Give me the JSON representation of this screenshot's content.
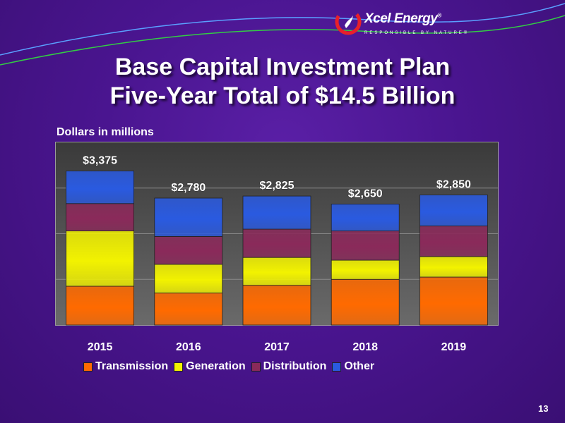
{
  "brand": {
    "name": "Xcel Energy",
    "registered": "®",
    "tagline": "RESPONSIBLE BY NATURE®"
  },
  "slide": {
    "title_line1": "Base Capital Investment Plan",
    "title_line2": "Five-Year Total of $14.5 Billion",
    "page_number": "13"
  },
  "colors": {
    "background": "#4a1590",
    "transmission": "#ff6a00",
    "generation": "#f2f200",
    "distribution": "#8a2a5a",
    "other": "#2a5ae0"
  },
  "chart_data": {
    "type": "bar",
    "stacked": true,
    "ylabel": "Dollars in millions",
    "categories": [
      "2015",
      "2016",
      "2017",
      "2018",
      "2019"
    ],
    "totals": [
      3375,
      2780,
      2825,
      2650,
      2850
    ],
    "total_labels": [
      "$3,375",
      "$2,780",
      "$2,825",
      "$2,650",
      "$2,850"
    ],
    "series": [
      {
        "name": "Transmission",
        "color": "#ff6a00",
        "values": [
          850,
          700,
          870,
          1000,
          1050
        ]
      },
      {
        "name": "Generation",
        "color": "#f2f200",
        "values": [
          1210,
          630,
          610,
          420,
          450
        ]
      },
      {
        "name": "Distribution",
        "color": "#8a2a5a",
        "values": [
          600,
          610,
          620,
          640,
          670
        ]
      },
      {
        "name": "Other",
        "color": "#2a5ae0",
        "values": [
          715,
          840,
          725,
          590,
          680
        ]
      }
    ],
    "ylim": [
      0,
      4000
    ],
    "grid": true,
    "legend_position": "bottom"
  }
}
